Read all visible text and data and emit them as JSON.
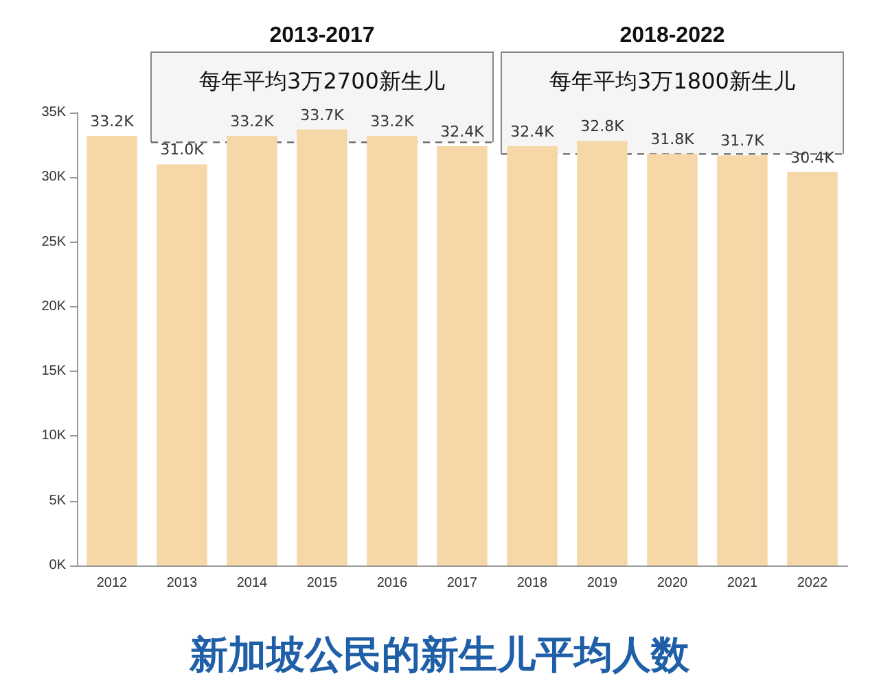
{
  "chart_data": {
    "type": "bar",
    "title": "新加坡公民的新生儿平均人数",
    "categories": [
      "2012",
      "2013",
      "2014",
      "2015",
      "2016",
      "2017",
      "2018",
      "2019",
      "2020",
      "2021",
      "2022"
    ],
    "values": [
      33.2,
      31.0,
      33.2,
      33.7,
      33.2,
      32.4,
      32.4,
      32.8,
      31.8,
      31.7,
      30.4
    ],
    "value_labels": [
      "33.2K",
      "31.0K",
      "33.2K",
      "33.7K",
      "33.2K",
      "32.4K",
      "32.4K",
      "32.8K",
      "31.8K",
      "31.7K",
      "30.4K"
    ],
    "color": "#f5d7a8",
    "ylim": [
      0,
      35
    ],
    "yticks": [
      {
        "value": 0,
        "label": "0K"
      },
      {
        "value": 5,
        "label": "5K"
      },
      {
        "value": 10,
        "label": "10K"
      },
      {
        "value": 15,
        "label": "15K"
      },
      {
        "value": 20,
        "label": "20K"
      },
      {
        "value": 25,
        "label": "25K"
      },
      {
        "value": 30,
        "label": "30K"
      },
      {
        "value": 35,
        "label": "35K"
      }
    ],
    "bands": [
      {
        "axis": "x",
        "from": "2013",
        "to": "2017",
        "label": "2013-2017"
      },
      {
        "axis": "x",
        "from": "2018",
        "to": "2022",
        "label": "2018-2022"
      }
    ],
    "ref_lines": [
      {
        "axis": "y",
        "value": 32.7,
        "label": "每年平均3万2700新生儿",
        "line_style": "dashed",
        "color": "#666666"
      },
      {
        "axis": "y",
        "value": 31.8,
        "label": "每年平均3万1800新生儿",
        "line_style": "dashed",
        "color": "#666666"
      }
    ],
    "grid": false
  }
}
